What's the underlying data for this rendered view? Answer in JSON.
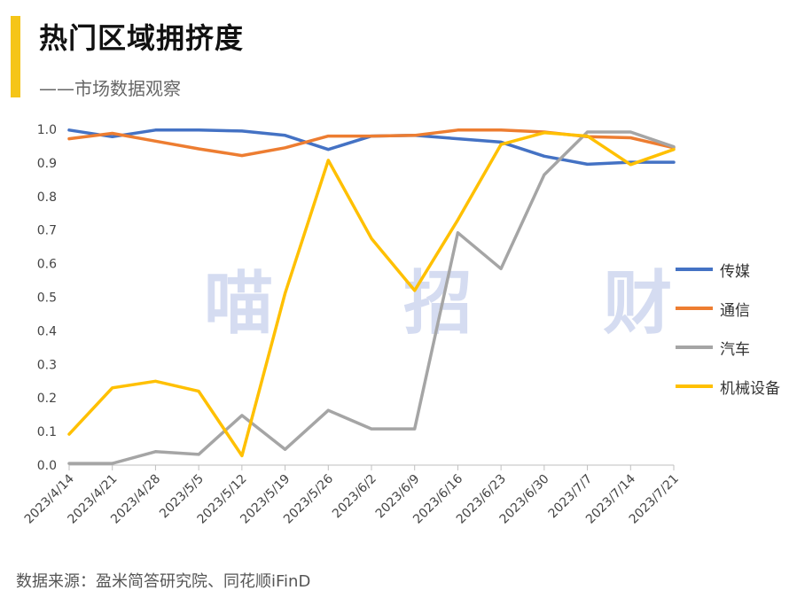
{
  "header": {
    "title": "热门区域拥挤度",
    "subtitle": "——市场数据观察",
    "accent_color": "#f5c518"
  },
  "watermark": "喵 招 财",
  "footer": {
    "source": "数据来源：盈米简答研究院、同花顺iFinD"
  },
  "chart_data": {
    "type": "line",
    "title": "热门区域拥挤度",
    "x": [
      "2023/4/14",
      "2023/4/21",
      "2023/4/28",
      "2023/5/5",
      "2023/5/12",
      "2023/5/19",
      "2023/5/26",
      "2023/6/2",
      "2023/6/9",
      "2023/6/16",
      "2023/6/23",
      "2023/6/30",
      "2023/7/7",
      "2023/7/14",
      "2023/7/21"
    ],
    "ylim": [
      0,
      1.0
    ],
    "yticks": [
      "0.0",
      "0.1",
      "0.2",
      "0.3",
      "0.4",
      "0.5",
      "0.6",
      "0.7",
      "0.8",
      "0.9",
      "1.0"
    ],
    "grid": false,
    "legend": "right",
    "series": [
      {
        "name": "传媒",
        "color": "#4472c4",
        "values": [
          0.998,
          0.978,
          0.998,
          0.998,
          0.995,
          0.982,
          0.94,
          0.98,
          0.982,
          0.972,
          0.962,
          0.92,
          0.896,
          0.902,
          0.902
        ]
      },
      {
        "name": "通信",
        "color": "#ed7d31",
        "values": [
          0.972,
          0.988,
          0.965,
          0.942,
          0.922,
          0.945,
          0.98,
          0.98,
          0.982,
          0.998,
          0.998,
          0.992,
          0.978,
          0.975,
          0.945
        ]
      },
      {
        "name": "汽车",
        "color": "#a5a5a5",
        "values": [
          0.005,
          0.005,
          0.04,
          0.032,
          0.148,
          0.047,
          0.163,
          0.108,
          0.108,
          0.692,
          0.585,
          0.865,
          0.992,
          0.992,
          0.948
        ]
      },
      {
        "name": "机械设备",
        "color": "#ffc000",
        "values": [
          0.092,
          0.23,
          0.25,
          0.22,
          0.028,
          0.512,
          0.908,
          0.675,
          0.52,
          0.73,
          0.955,
          0.99,
          0.98,
          0.895,
          0.94
        ]
      }
    ]
  }
}
